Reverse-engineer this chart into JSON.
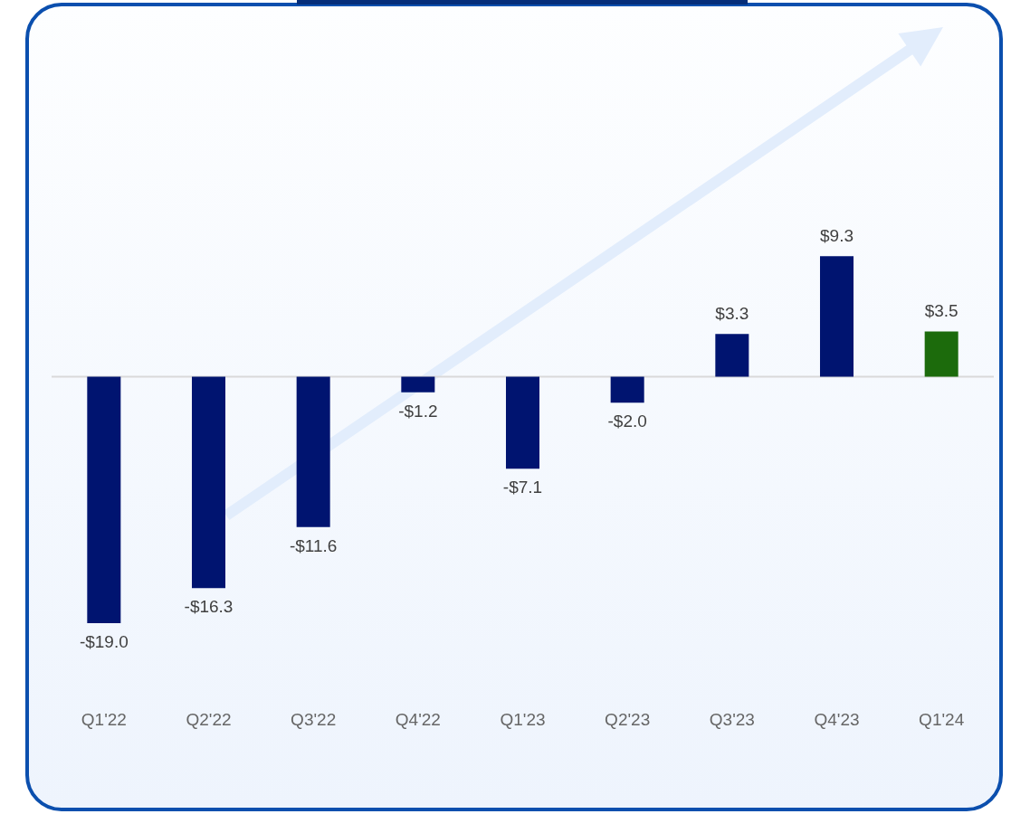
{
  "chart_data": {
    "type": "bar",
    "categories": [
      "Q1'22",
      "Q2'22",
      "Q3'22",
      "Q4'22",
      "Q1'23",
      "Q2'23",
      "Q3'23",
      "Q4'23",
      "Q1'24"
    ],
    "values": [
      -19.0,
      -16.3,
      -11.6,
      -1.2,
      -7.1,
      -2.0,
      3.3,
      9.3,
      3.5
    ],
    "colors": [
      "#001470",
      "#001470",
      "#001470",
      "#001470",
      "#001470",
      "#001470",
      "#001470",
      "#001470",
      "#1c6b0c"
    ],
    "value_labels": [
      "-$19.0",
      "-$16.3",
      "-$11.6",
      "-$1.2",
      "-$7.1",
      "-$2.0",
      "$3.3",
      "$9.3",
      "$3.5"
    ],
    "grid": false,
    "legend": false
  }
}
